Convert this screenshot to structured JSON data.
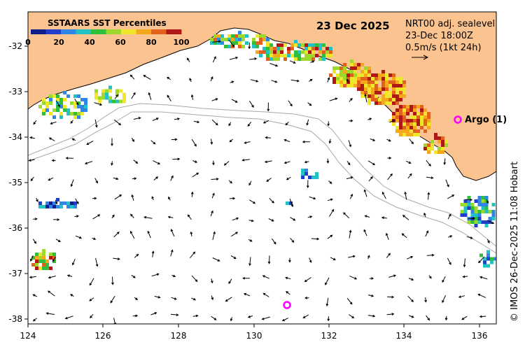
{
  "legend": {
    "title": "SSTAARS SST Percentiles",
    "colors": [
      "#0f1c8c",
      "#1f3ec9",
      "#2f86e6",
      "#21c2c4",
      "#2fbf3a",
      "#9cd92b",
      "#f1e72a",
      "#f5a81c",
      "#e2621b",
      "#b01818"
    ],
    "ticks": [
      "0",
      "20",
      "40",
      "60",
      "80",
      "100"
    ]
  },
  "header": {
    "date": "23 Dec 2025",
    "product": "NRT00 adj. sealevel",
    "time": "23-Dec 18:00Z",
    "scale": "0.5m/s (1kt 24h)"
  },
  "argo": {
    "label": "Argo (1)",
    "marker": "o",
    "color": "#ff00ff"
  },
  "credit": "© IMOS 26-Dec-2025 11:08 Hobart",
  "axes": {
    "lon_ticks": [
      "124",
      "126",
      "128",
      "130",
      "132",
      "134",
      "136"
    ],
    "lat_ticks": [
      "-32",
      "-33",
      "-34",
      "-35",
      "-36",
      "-37",
      "-38"
    ]
  },
  "colors": {
    "land": "#fbc38f",
    "ocean": "#ffffff",
    "isobath": "#a8a8a8"
  }
}
